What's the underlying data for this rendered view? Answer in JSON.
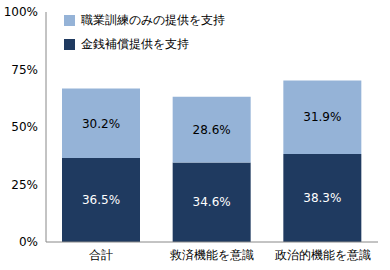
{
  "chart_data": {
    "type": "bar",
    "stacked": true,
    "data_labels": true,
    "grid": false,
    "legend": "upper left",
    "categories": [
      "合計",
      "救済機能を意識",
      "政治的機能を意識"
    ],
    "series": [
      {
        "name": "金銭補償提供を支持",
        "color": "#1f3a60",
        "values": [
          36.5,
          34.6,
          38.3
        ],
        "value_labels": [
          "36.5%",
          "34.6%",
          "38.3%"
        ]
      },
      {
        "name": "職業訓練のみの提供を支持",
        "color": "#95b3d7",
        "values": [
          30.2,
          28.6,
          31.9
        ],
        "value_labels": [
          "30.2%",
          "28.6%",
          "31.9%"
        ]
      }
    ],
    "ylim": [
      0,
      100
    ],
    "yticks": [
      {
        "value": 0,
        "label": "0%"
      },
      {
        "value": 25,
        "label": "25%"
      },
      {
        "value": 50,
        "label": "50%"
      },
      {
        "value": 75,
        "label": "75%"
      },
      {
        "value": 100,
        "label": "100%"
      }
    ]
  }
}
